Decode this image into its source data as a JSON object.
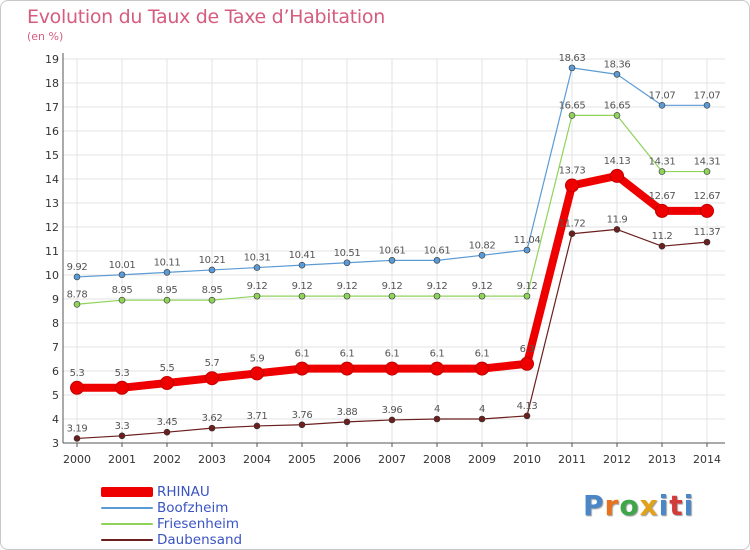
{
  "header": {
    "title": "Evolution du Taux de Taxe d’Habitation",
    "unit": "(en %)"
  },
  "logo": {
    "letters": [
      "P",
      "r",
      "o",
      "x",
      "i",
      "t",
      "i"
    ],
    "colors": [
      "#4a86c8",
      "#e8731f",
      "#3fa74a",
      "#e0a21b",
      "#4a86c8",
      "#d33b3b",
      "#4a86c8"
    ]
  },
  "chart_data": {
    "type": "line",
    "title": "Evolution du Taux de Taxe d’Habitation",
    "ylabel": "(en %)",
    "xlabel": "",
    "x": [
      "2000",
      "2001",
      "2002",
      "2003",
      "2004",
      "2005",
      "2006",
      "2007",
      "2008",
      "2009",
      "2010",
      "2011",
      "2012",
      "2013",
      "2014"
    ],
    "ylim": [
      3,
      19
    ],
    "yticks": [
      3,
      4,
      5,
      6,
      7,
      8,
      9,
      10,
      11,
      12,
      13,
      14,
      15,
      16,
      17,
      18,
      19
    ],
    "grid": true,
    "legend_position": "bottom-left",
    "series": [
      {
        "name": "RHINAU",
        "color": "#ee0000",
        "values": [
          5.3,
          5.3,
          5.5,
          5.7,
          5.9,
          6.1,
          6.1,
          6.1,
          6.1,
          6.1,
          6.3,
          13.73,
          14.13,
          12.67,
          12.67
        ],
        "labels": [
          "5.3",
          "5.3",
          "5.5",
          "5.7",
          "5.9",
          "6.1",
          "6.1",
          "6.1",
          "6.1",
          "6.1",
          "6.3",
          "13.73",
          "14.13",
          "12.67",
          "12.67"
        ]
      },
      {
        "name": "Boofzheim",
        "color": "#5b9bd5",
        "values": [
          9.92,
          10.01,
          10.11,
          10.21,
          10.31,
          10.41,
          10.51,
          10.61,
          10.61,
          10.82,
          11.04,
          18.63,
          18.36,
          17.07,
          17.07
        ],
        "labels": [
          "9.92",
          "10.01",
          "10.11",
          "10.21",
          "10.31",
          "10.41",
          "10.51",
          "10.61",
          "10.61",
          "10.82",
          "11.04",
          "18.63",
          "18.36",
          "17.07",
          "17.07"
        ]
      },
      {
        "name": "Friesenheim",
        "color": "#8fd35b",
        "values": [
          8.78,
          8.95,
          8.95,
          8.95,
          9.12,
          9.12,
          9.12,
          9.12,
          9.12,
          9.12,
          9.12,
          16.65,
          16.65,
          14.31,
          14.31
        ],
        "labels": [
          "8.78",
          "8.95",
          "8.95",
          "8.95",
          "9.12",
          "9.12",
          "9.12",
          "9.12",
          "9.12",
          "9.12",
          "9.12",
          "16.65",
          "16.65",
          "14.31",
          "14.31"
        ]
      },
      {
        "name": "Daubensand",
        "color": "#6b1f1f",
        "values": [
          3.19,
          3.3,
          3.45,
          3.62,
          3.71,
          3.76,
          3.88,
          3.96,
          4,
          4,
          4.13,
          11.72,
          11.9,
          11.2,
          11.37
        ],
        "labels": [
          "3.19",
          "3.3",
          "3.45",
          "3.62",
          "3.71",
          "3.76",
          "3.88",
          "3.96",
          "4",
          "4",
          "4.13",
          "11.72",
          "11.9",
          "11.2",
          "11.37"
        ]
      }
    ]
  }
}
